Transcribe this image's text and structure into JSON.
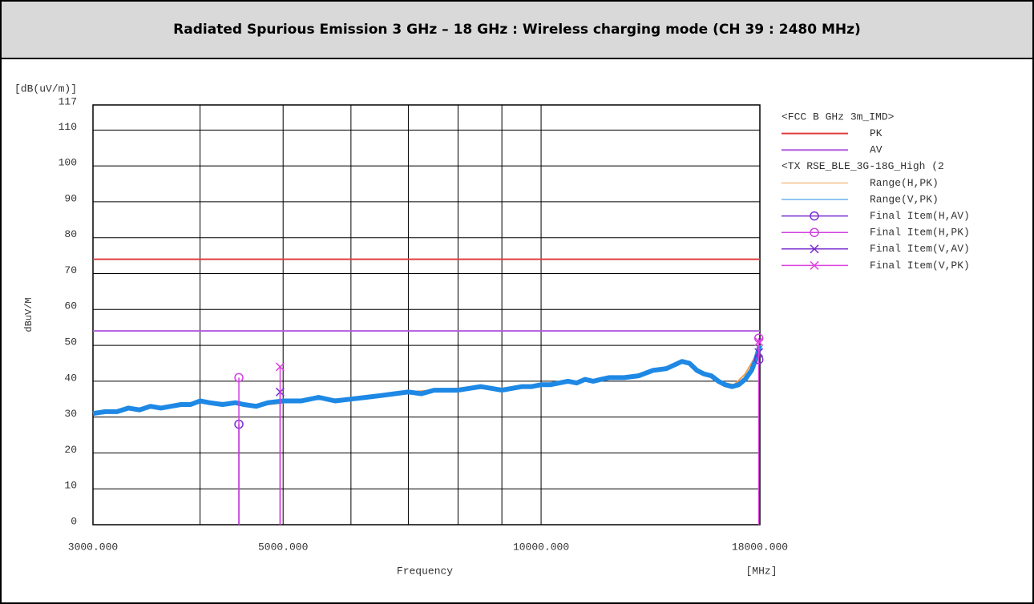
{
  "header": {
    "title": "Radiated Spurious Emission 3 GHz – 18 GHz : Wireless charging mode (CH 39 : 2480 MHz)"
  },
  "chart_data": {
    "type": "line",
    "y_unit": "[dB(uV/m)]",
    "y_label": "dBuV/M",
    "x_label": "Frequency",
    "x_unit": "[MHz]",
    "xscale": "log",
    "xlim": [
      3000,
      18000
    ],
    "xticks": [
      {
        "value": 3000,
        "label": "3000.000"
      },
      {
        "value": 5000,
        "label": "5000.000"
      },
      {
        "value": 10000,
        "label": "10000.000"
      },
      {
        "value": 18000,
        "label": "18000.000"
      }
    ],
    "x_grid_lines": [
      4000,
      6000,
      7000,
      8000,
      9000
    ],
    "ylim": [
      0,
      117
    ],
    "yticks": [
      0,
      10,
      20,
      30,
      40,
      50,
      60,
      70,
      80,
      90,
      100,
      110,
      117
    ],
    "grid": true,
    "legend_groups": [
      "<FCC B GHz 3m_IMD>",
      "<TX RSE_BLE_3G-18G_High (2"
    ],
    "limits": [
      {
        "name": "PK",
        "color": "#e03c3c",
        "value": 74
      },
      {
        "name": "AV",
        "color": "#b05ce0",
        "value": 54
      }
    ],
    "series": [
      {
        "name": "Range(H,PK)",
        "color": "#f0a050",
        "x": [
          3000,
          3200,
          3400,
          3600,
          3800,
          4000,
          4250,
          4500,
          4800,
          5000,
          5500,
          6000,
          6500,
          7000,
          7500,
          8000,
          8500,
          9000,
          9500,
          10000,
          10500,
          11000,
          11500,
          12000,
          12500,
          13000,
          13500,
          14000,
          14600,
          15200,
          15800,
          16300,
          16800,
          17300,
          17700,
          18000
        ],
        "values": [
          31,
          31.5,
          32.5,
          32.5,
          33.5,
          34.5,
          34,
          33.5,
          33.5,
          34,
          35,
          35,
          36,
          37,
          37.5,
          38,
          38,
          38,
          38.5,
          39,
          39.5,
          40,
          40,
          41,
          41,
          42,
          43,
          44,
          45.5,
          43.5,
          41,
          39.5,
          39,
          42,
          46,
          50
        ]
      },
      {
        "name": "Range(V,PK)",
        "color": "#1e88e5",
        "x": [
          3000,
          3100,
          3200,
          3300,
          3400,
          3500,
          3600,
          3700,
          3800,
          3900,
          4000,
          4100,
          4250,
          4400,
          4500,
          4650,
          4800,
          5000,
          5250,
          5500,
          5750,
          6000,
          6250,
          6500,
          6750,
          7000,
          7250,
          7500,
          7750,
          8000,
          8250,
          8500,
          8750,
          9000,
          9250,
          9500,
          9750,
          10000,
          10250,
          10500,
          10750,
          11000,
          11250,
          11500,
          11750,
          12000,
          12500,
          13000,
          13500,
          14000,
          14300,
          14600,
          14900,
          15200,
          15500,
          15800,
          16100,
          16400,
          16700,
          17000,
          17300,
          17600,
          17800,
          18000
        ],
        "values": [
          31,
          31.5,
          31.5,
          32.5,
          32,
          33,
          32.5,
          33,
          33.5,
          33.5,
          34.5,
          34,
          33.5,
          34,
          33.5,
          33,
          34,
          34.5,
          34.5,
          35.5,
          34.5,
          35,
          35.5,
          36,
          36.5,
          37,
          36.5,
          37.5,
          37.5,
          37.5,
          38,
          38.5,
          38,
          37.5,
          38,
          38.5,
          38.5,
          39,
          39,
          39.5,
          40,
          39.5,
          40.5,
          40,
          40.5,
          41,
          41,
          41.5,
          43,
          43.5,
          44.5,
          45.5,
          45,
          43,
          42,
          41.5,
          40,
          39,
          38.5,
          39,
          40.5,
          43,
          46,
          50
        ]
      },
      {
        "name": "Final Item(H,AV)",
        "color": "#7a2fd0",
        "marker": "circle",
        "x": [
          4440,
          17950
        ],
        "values": [
          28,
          46
        ]
      },
      {
        "name": "Final Item(H,PK)",
        "color": "#d040e0",
        "marker": "circle",
        "x": [
          4440,
          17950
        ],
        "values": [
          41,
          52
        ]
      },
      {
        "name": "Final Item(V,AV)",
        "color": "#7a2fd0",
        "marker": "cross",
        "x": [
          4960,
          17950
        ],
        "values": [
          37,
          48
        ]
      },
      {
        "name": "Final Item(V,PK)",
        "color": "#e040e0",
        "marker": "cross",
        "x": [
          4960,
          17950
        ],
        "values": [
          44,
          51
        ]
      }
    ]
  }
}
